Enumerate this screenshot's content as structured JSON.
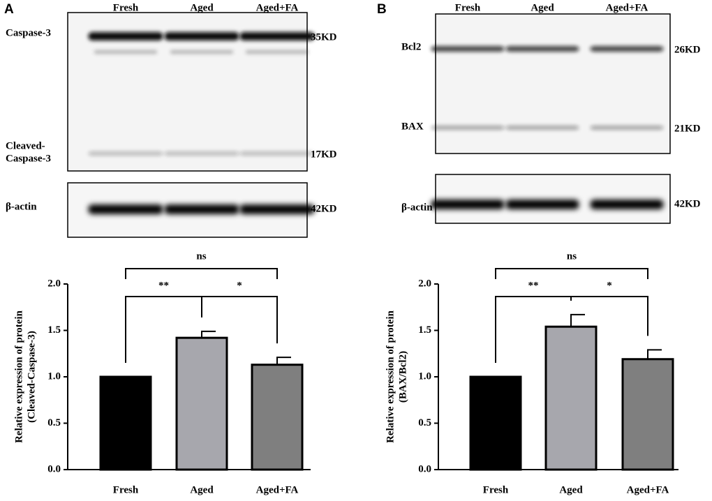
{
  "panels": [
    {
      "label": "A",
      "lanes": [
        "Fresh",
        "Aged",
        "Aged+FA"
      ],
      "blot": [
        {
          "protein": [
            "Caspase-3"
          ],
          "size": "35KD"
        },
        {
          "protein": [
            "Cleaved-",
            "Caspase-3"
          ],
          "size": "17KD"
        }
      ],
      "actin": {
        "protein": "β-actin",
        "size": "42KD"
      }
    },
    {
      "label": "B",
      "lanes": [
        "Fresh",
        "Aged",
        "Aged+FA"
      ],
      "blot": [
        {
          "protein": [
            "Bcl2"
          ],
          "size": "26KD"
        },
        {
          "protein": [
            "BAX"
          ],
          "size": "21KD"
        }
      ],
      "actin": {
        "protein": "β-actin",
        "size": "42KD"
      }
    }
  ],
  "chart_data": [
    {
      "type": "bar",
      "ylabel": [
        "Relative expression of protein",
        "(Cleaved-Caspase-3)"
      ],
      "categories": [
        "Fresh",
        "Aged",
        "Aged+FA"
      ],
      "values": [
        1.0,
        1.42,
        1.13
      ],
      "errors": [
        0,
        0.07,
        0.08
      ],
      "colors": [
        "#000000",
        "#a7a7ad",
        "#7f7f7f"
      ],
      "ylim": [
        0,
        2
      ],
      "yticks": [
        {
          "value": 0,
          "label": "0.0"
        },
        0.5,
        {
          "value": 1,
          "label": "1.0"
        },
        1.5,
        {
          "value": 2,
          "label": "2.0"
        }
      ],
      "significance": [
        {
          "from": 0,
          "to": 2,
          "label": "ns"
        },
        {
          "from": 0,
          "to": 1,
          "label": "**"
        },
        {
          "from": 1,
          "to": 2,
          "label": "*"
        }
      ]
    },
    {
      "type": "bar",
      "ylabel": [
        "Relative expression of protein",
        "(BAX/Bcl2)"
      ],
      "categories": [
        "Fresh",
        "Aged",
        "Aged+FA"
      ],
      "values": [
        1.0,
        1.54,
        1.19
      ],
      "errors": [
        0,
        0.13,
        0.1
      ],
      "colors": [
        "#000000",
        "#a7a7ad",
        "#7f7f7f"
      ],
      "ylim": [
        0,
        2
      ],
      "yticks": [
        {
          "value": 0,
          "label": "0.0"
        },
        0.5,
        {
          "value": 1,
          "label": "1.0"
        },
        1.5,
        {
          "value": 2,
          "label": "2.0"
        }
      ],
      "significance": [
        {
          "from": 0,
          "to": 2,
          "label": "ns"
        },
        {
          "from": 0,
          "to": 1,
          "label": "**"
        },
        {
          "from": 1,
          "to": 2,
          "label": "*"
        }
      ]
    }
  ]
}
